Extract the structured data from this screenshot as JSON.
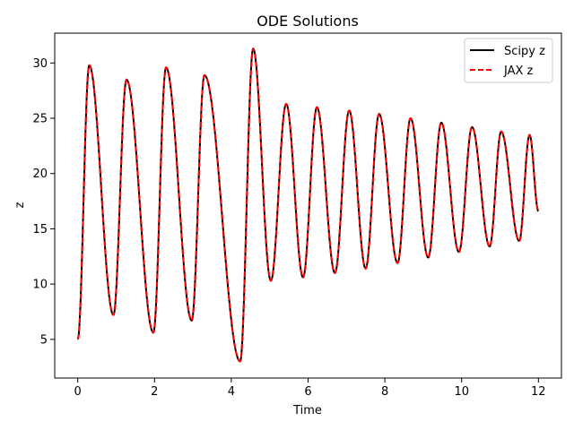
{
  "chart_data": {
    "type": "line",
    "title": "ODE Solutions",
    "xlabel": "Time",
    "ylabel": "z",
    "xlim": [
      -0.6,
      12.6
    ],
    "ylim": [
      1.5,
      32.7
    ],
    "xticks": [
      0,
      2,
      4,
      6,
      8,
      10,
      12
    ],
    "yticks": [
      5,
      10,
      15,
      20,
      25,
      30
    ],
    "grid": false,
    "legend_position": "top-right",
    "extrema": [
      {
        "t": 0.0,
        "z": 5.0
      },
      {
        "t": 0.3,
        "z": 29.8
      },
      {
        "t": 0.93,
        "z": 7.2
      },
      {
        "t": 1.27,
        "z": 28.5
      },
      {
        "t": 1.97,
        "z": 5.6
      },
      {
        "t": 2.3,
        "z": 29.6
      },
      {
        "t": 2.97,
        "z": 6.7
      },
      {
        "t": 3.3,
        "z": 28.9
      },
      {
        "t": 4.23,
        "z": 3.0
      },
      {
        "t": 4.57,
        "z": 31.3
      },
      {
        "t": 5.03,
        "z": 10.3
      },
      {
        "t": 5.43,
        "z": 26.3
      },
      {
        "t": 5.87,
        "z": 10.6
      },
      {
        "t": 6.23,
        "z": 26.0
      },
      {
        "t": 6.7,
        "z": 11.0
      },
      {
        "t": 7.07,
        "z": 25.7
      },
      {
        "t": 7.5,
        "z": 11.4
      },
      {
        "t": 7.85,
        "z": 25.4
      },
      {
        "t": 8.33,
        "z": 11.9
      },
      {
        "t": 8.67,
        "z": 25.0
      },
      {
        "t": 9.13,
        "z": 12.4
      },
      {
        "t": 9.47,
        "z": 24.6
      },
      {
        "t": 9.93,
        "z": 12.9
      },
      {
        "t": 10.27,
        "z": 24.2
      },
      {
        "t": 10.73,
        "z": 13.4
      },
      {
        "t": 11.03,
        "z": 23.8
      },
      {
        "t": 11.5,
        "z": 13.9
      },
      {
        "t": 11.77,
        "z": 23.5
      },
      {
        "t": 12.0,
        "z": 16.6
      }
    ],
    "series": [
      {
        "name": "Scipy z",
        "color": "#000000",
        "style": "solid"
      },
      {
        "name": "JAX z",
        "color": "#ff0000",
        "style": "dashed"
      }
    ]
  }
}
